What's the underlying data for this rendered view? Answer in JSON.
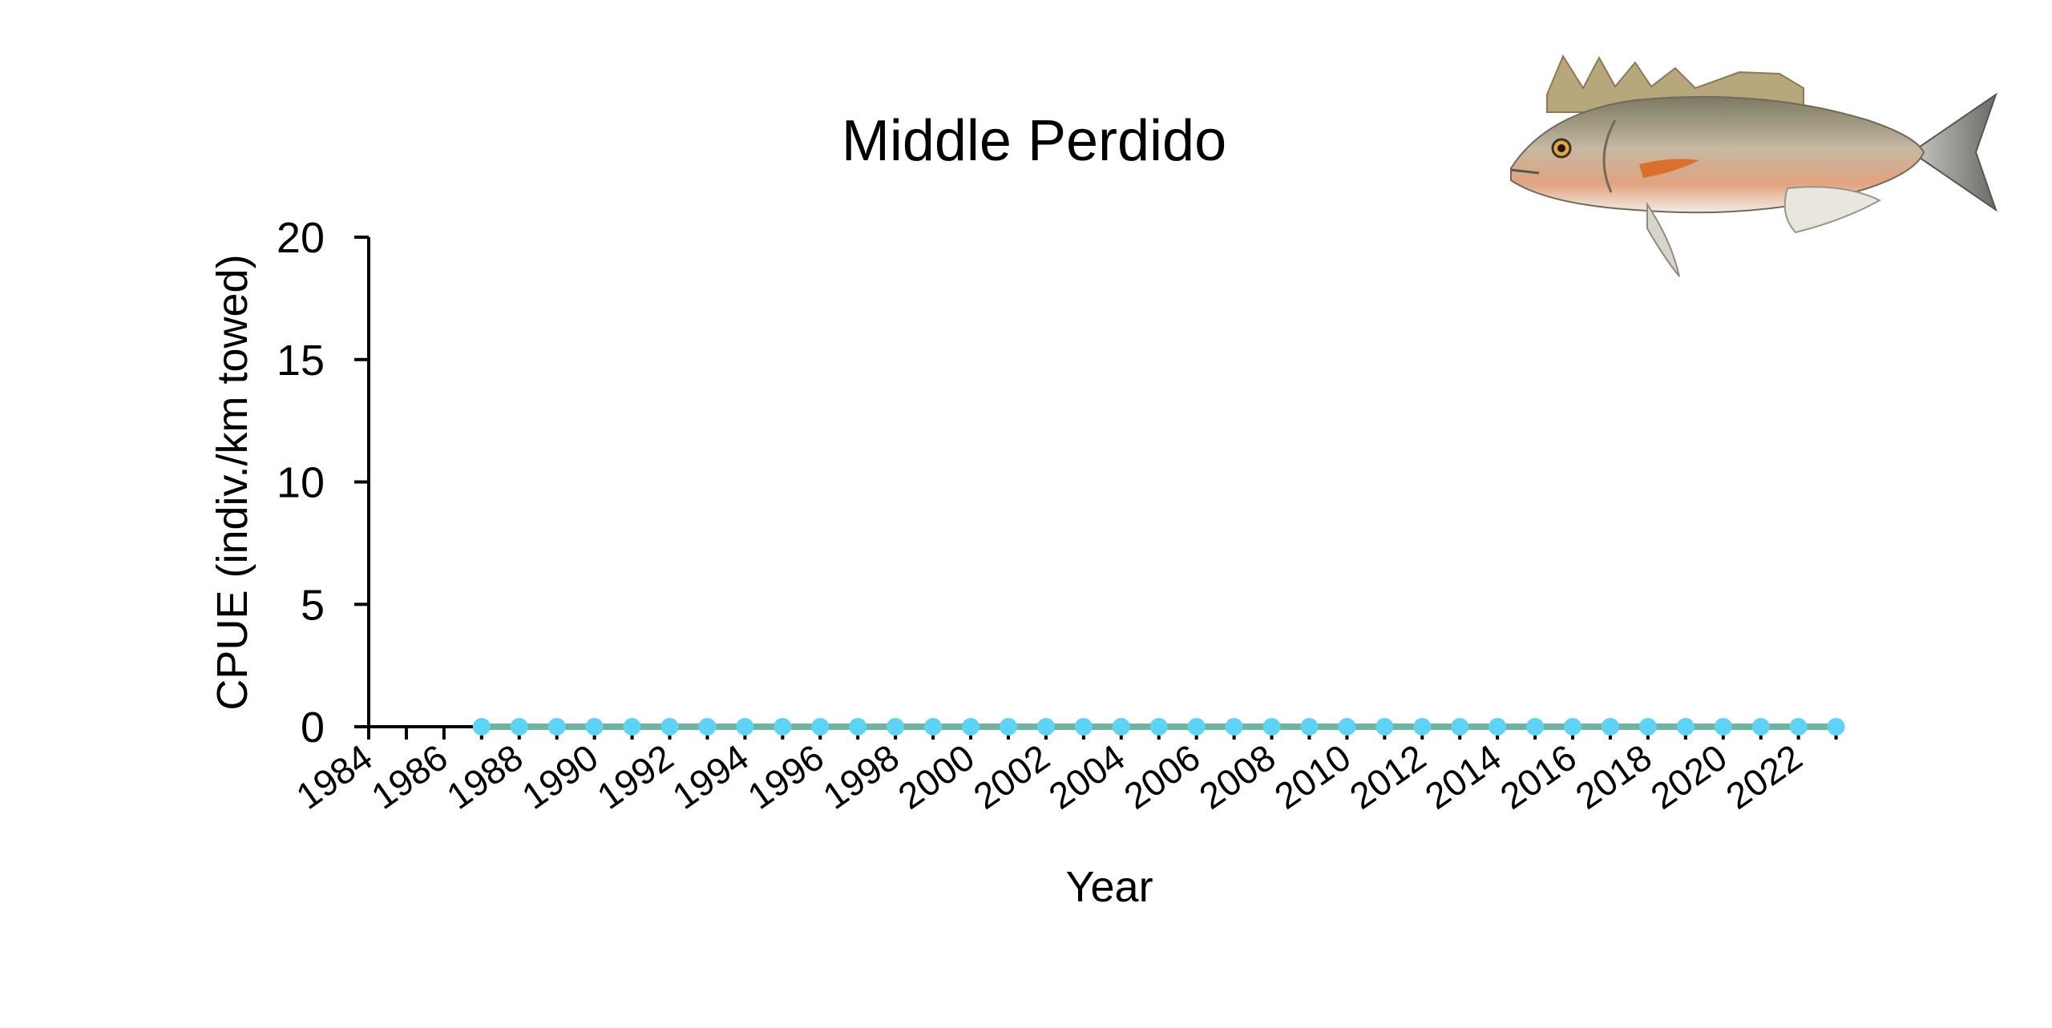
{
  "chart_data": {
    "type": "line",
    "title": "Middle Perdido",
    "xlabel": "Year",
    "ylabel": "CPUE (indiv./km towed)",
    "ylim": [
      0,
      20
    ],
    "yticks": [
      0,
      5,
      10,
      15,
      20
    ],
    "xlim": [
      1984,
      2023
    ],
    "xtick_labels": [
      "1984",
      "1986",
      "1988",
      "1990",
      "1992",
      "1994",
      "1996",
      "1998",
      "2000",
      "2002",
      "2004",
      "2006",
      "2008",
      "2010",
      "2012",
      "2014",
      "2016",
      "2018",
      "2020",
      "2022"
    ],
    "grid": false,
    "legend": "none",
    "series": [
      {
        "x": [
          1987,
          1988,
          1989,
          1990,
          1991,
          1992,
          1993,
          1994,
          1995,
          1996,
          1997,
          1998,
          1999,
          2000,
          2001,
          2002,
          2003,
          2004,
          2005,
          2006,
          2007,
          2008,
          2009,
          2010,
          2011,
          2012,
          2013,
          2014,
          2015,
          2016,
          2017,
          2018,
          2019,
          2020,
          2021,
          2022,
          2023
        ],
        "values": [
          0,
          0,
          0,
          0,
          0,
          0,
          0,
          0,
          0,
          0,
          0,
          0,
          0,
          0,
          0,
          0,
          0,
          0,
          0,
          0,
          0,
          0,
          0,
          0,
          0,
          0,
          0,
          0,
          0,
          0,
          0,
          0,
          0,
          0,
          0,
          0,
          0
        ],
        "line_color": "#6fb3a0",
        "marker_color": "#5fd3f5"
      }
    ],
    "illustration": "fish-illustration"
  }
}
